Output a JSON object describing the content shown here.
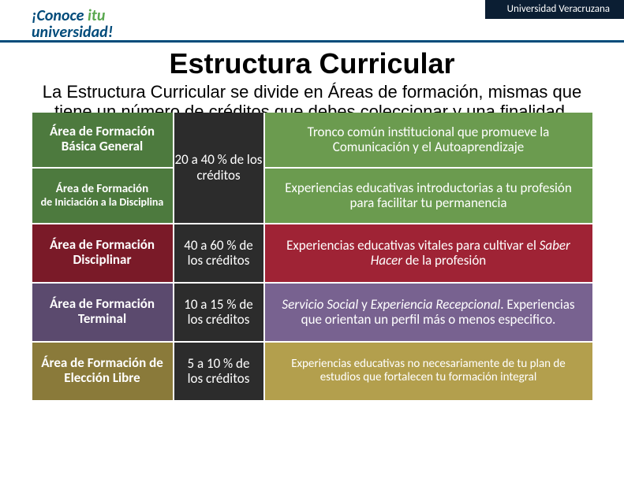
{
  "header": {
    "brand_prefix": "¡Conoce ",
    "brand_itu": "itu",
    "brand_line2": "universidad!",
    "institution": "Universidad Veracruzana"
  },
  "title": "Estructura Curricular",
  "subtitle": "La Estructura Curricular se divide en Áreas de formación, mismas que tiene un número de créditos que debes coleccionar y una finalidad.",
  "colors": {
    "row1_area": "#4d7a3e",
    "row1_desc": "#6b9b4f",
    "row2_area": "#7a1a28",
    "row2_desc": "#9f2335",
    "row3_area": "#5b4a6e",
    "row3_desc": "#786290",
    "row4_area": "#8a7a3a",
    "row4_desc": "#b39f4d",
    "credits_bg": "#2c2c2c"
  },
  "rows": [
    {
      "area_top": "Área de Formación Básica General",
      "area_bot_line1": "Área de Formación",
      "area_bot_line2": "de Iniciación a la Disciplina",
      "credits": "20 a 40 % de los créditos",
      "desc_top": "Tronco común institucional que promueve la Comunicación y el Autoaprendizaje",
      "desc_bot": "Experiencias educativas introductorias a tu profesión para facilitar tu permanencia"
    },
    {
      "area": "Área de Formación Disciplinar",
      "credits": "40 a 60 % de los créditos",
      "desc_pre": "Experiencias educativas vitales para cultivar el ",
      "desc_em": "Saber Hacer",
      "desc_post": " de la profesión"
    },
    {
      "area": "Área de Formación Terminal",
      "credits": "10 a 15 % de los créditos",
      "desc_em1": "Servicio Social",
      "desc_mid": " y ",
      "desc_em2": "Experiencia Recepcional",
      "desc_post": ". Experiencias que orientan un perfil más o menos especifico."
    },
    {
      "area": "Área de Formación de Elección Libre",
      "credits": "5 a 10 % de los créditos",
      "desc": "Experiencias educativas no necesariamente de tu plan de estudios que fortalecen tu formación integral"
    }
  ]
}
